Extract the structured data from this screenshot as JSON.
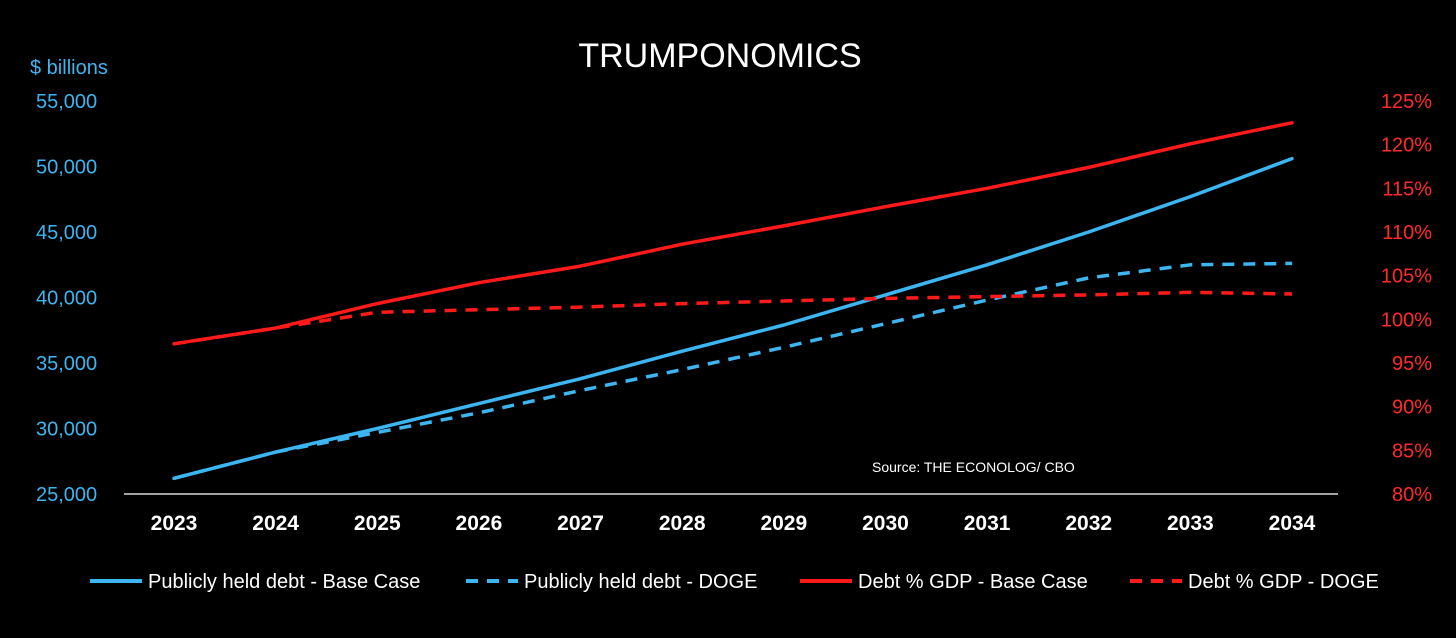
{
  "chart_data": {
    "type": "line",
    "title": "TRUMPONOMICS",
    "left_axis_label": "$ billions",
    "source": "Source: THE ECONOLOG/ CBO",
    "categories": [
      "2023",
      "2024",
      "2025",
      "2026",
      "2027",
      "2028",
      "2029",
      "2030",
      "2031",
      "2032",
      "2033",
      "2034"
    ],
    "y_left": {
      "range": [
        25000,
        55000
      ],
      "ticks": [
        25000,
        30000,
        35000,
        40000,
        45000,
        50000,
        55000
      ],
      "tick_labels": [
        "25,000",
        "30,000",
        "35,000",
        "40,000",
        "45,000",
        "50,000",
        "55,000"
      ],
      "color": "#3db5f0"
    },
    "y_right": {
      "range": [
        80,
        125
      ],
      "ticks": [
        80,
        85,
        90,
        95,
        100,
        105,
        110,
        115,
        120,
        125
      ],
      "tick_labels": [
        "80%",
        "85%",
        "90%",
        "95%",
        "100%",
        "105%",
        "110%",
        "115%",
        "120%",
        "125%"
      ],
      "color": "#ff2a2a"
    },
    "series": [
      {
        "name": "Publicly held debt - Base Case",
        "axis": "left",
        "style": "solid",
        "color": "#3db5f0",
        "values": [
          26200,
          28200,
          30000,
          31900,
          33800,
          35900,
          37900,
          40200,
          42500,
          45000,
          47700,
          50600
        ]
      },
      {
        "name": "Publicly held debt - DOGE",
        "axis": "left",
        "style": "dashed",
        "color": "#3db5f0",
        "values": [
          26200,
          28200,
          29700,
          31200,
          32900,
          34500,
          36200,
          38000,
          39800,
          41500,
          42500,
          42600
        ]
      },
      {
        "name": "Debt % GDP - Base Case",
        "axis": "right",
        "style": "solid",
        "color": "#ff1a1a",
        "values": [
          97.2,
          99.0,
          101.8,
          104.2,
          106.1,
          108.6,
          110.7,
          112.9,
          115.0,
          117.4,
          120.1,
          122.5
        ]
      },
      {
        "name": "Debt % GDP - DOGE",
        "axis": "right",
        "style": "dashed",
        "color": "#ff1a1a",
        "values": [
          97.2,
          99.0,
          100.8,
          101.1,
          101.4,
          101.8,
          102.1,
          102.4,
          102.6,
          102.8,
          103.1,
          102.9
        ]
      }
    ],
    "grid": false,
    "legend_position": "bottom"
  }
}
